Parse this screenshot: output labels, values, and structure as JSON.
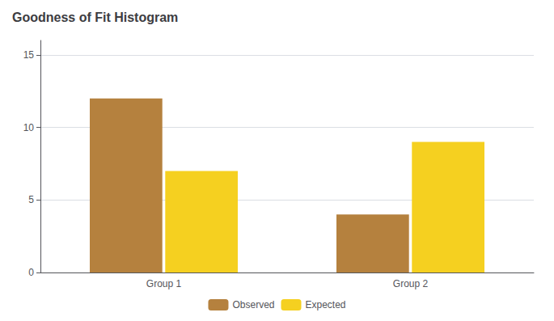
{
  "chart_data": {
    "type": "bar",
    "title": "Goodness of Fit Histogram",
    "categories": [
      "Group 1",
      "Group 2"
    ],
    "series": [
      {
        "name": "Observed",
        "color": "#b5813e",
        "values": [
          12,
          4
        ]
      },
      {
        "name": "Expected",
        "color": "#f5d020",
        "values": [
          7,
          9
        ]
      }
    ],
    "ylim": [
      0,
      16
    ],
    "yticks": [
      0,
      5,
      10,
      15
    ],
    "grid": true,
    "legend": "bottom"
  }
}
